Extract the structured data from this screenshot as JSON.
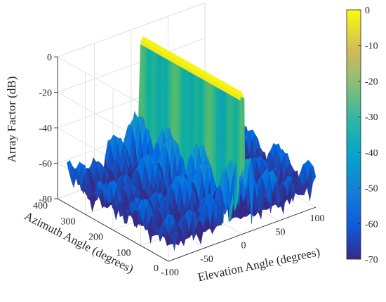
{
  "chart_data": {
    "type": "surface3d",
    "title": "",
    "xlabel": "Elevation Angle (degrees)",
    "ylabel": "Azimuth Angle (degrees)",
    "zlabel": "Array Factor (dB)",
    "xlim": [
      -100,
      100
    ],
    "ylim": [
      0,
      400
    ],
    "zlim": [
      -80,
      0
    ],
    "x_ticks": [
      "-100",
      "-50",
      "0",
      "50",
      "100"
    ],
    "y_ticks": [
      "0",
      "100",
      "200",
      "300",
      "400"
    ],
    "z_ticks": [
      "-80",
      "-60",
      "-40",
      "-20",
      "0"
    ],
    "colorbar": {
      "range": [
        -70,
        0
      ],
      "ticks": [
        "0",
        "-10",
        "-20",
        "-30",
        "-40",
        "-50",
        "-60",
        "-70"
      ],
      "colormap": "parula"
    },
    "main_lobe": {
      "elevation_center": 0,
      "elevation_halfwidth": 3,
      "peak_db": 0,
      "azimuth_range": [
        0,
        360
      ]
    },
    "sidelobe_floor_db": [
      -80,
      -40
    ],
    "grid": true,
    "view": "3d-perspective"
  },
  "colors": {
    "parula": [
      "#352a87",
      "#0268e1",
      "#108ed2",
      "#0fae9f",
      "#65bf62",
      "#d9b934",
      "#f9fb0e"
    ],
    "grid": "#dcdcdc",
    "axis": "#262626"
  }
}
